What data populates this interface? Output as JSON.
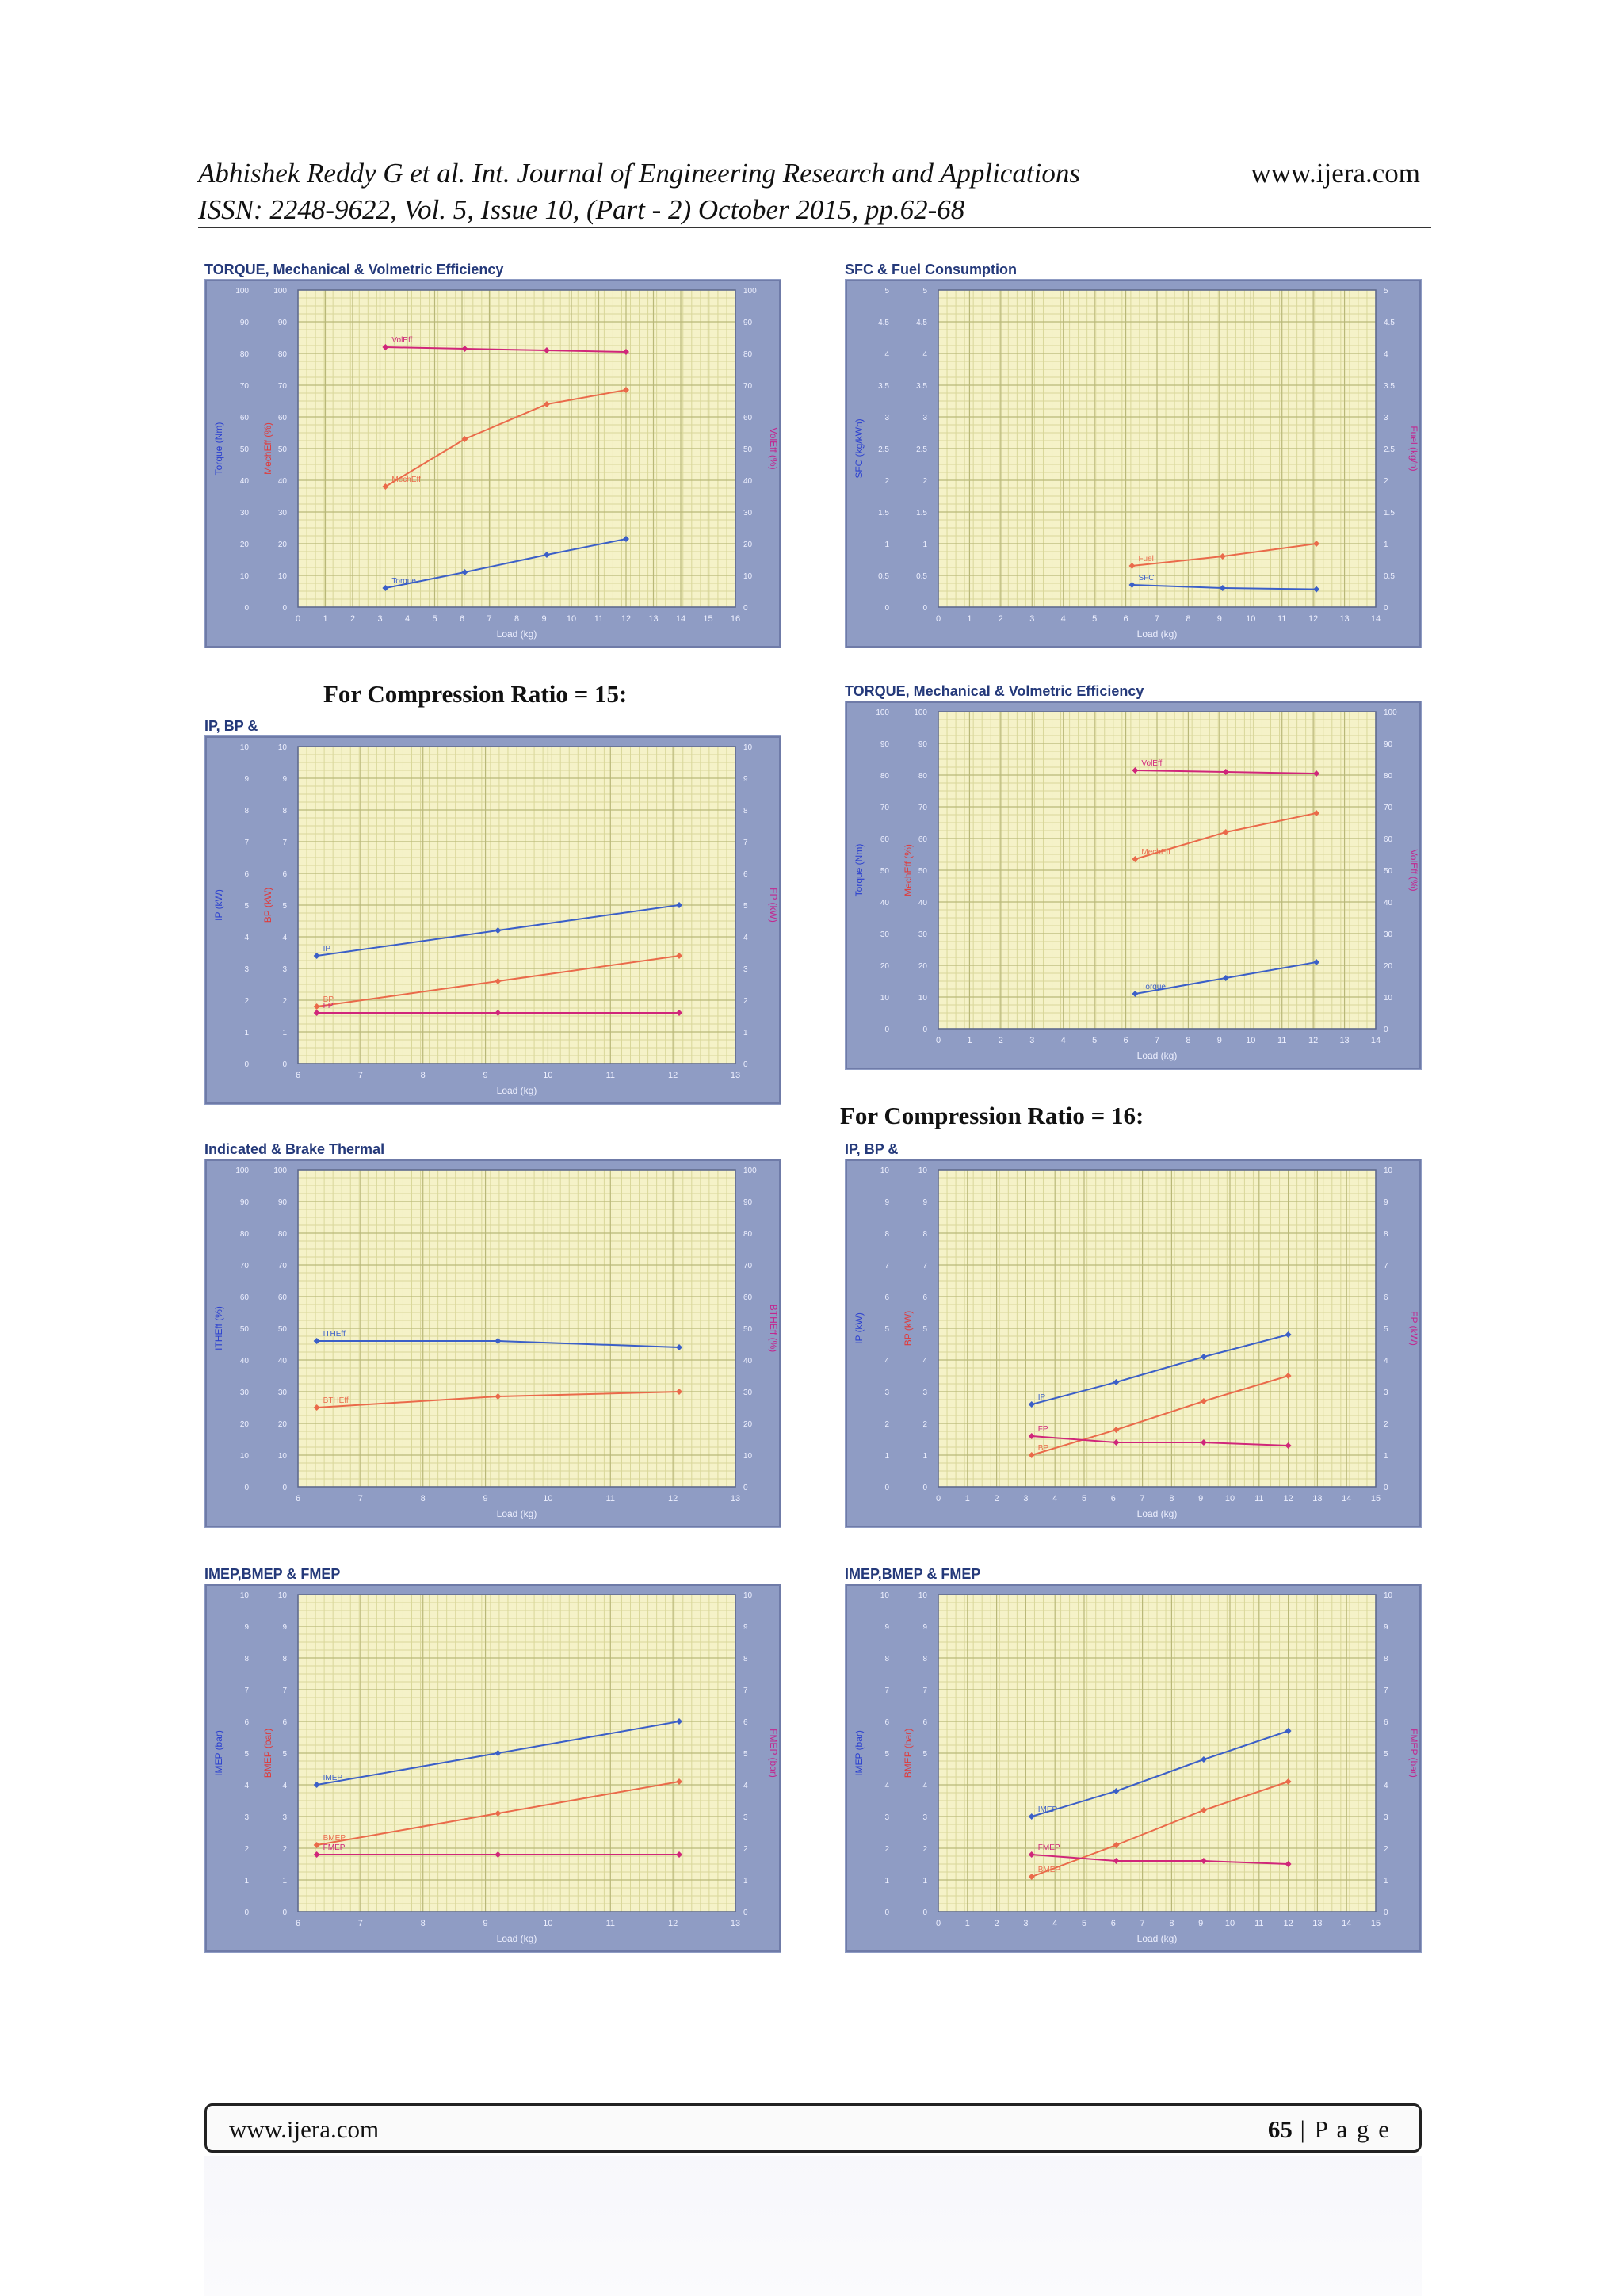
{
  "header": {
    "line1": "Abhishek Reddy G et al. Int. Journal of Engineering Research and Applications",
    "line2": "ISSN: 2248-9622, Vol. 5, Issue 10, (Part - 2) October 2015, pp.62-68",
    "site": "www.ijera.com"
  },
  "labels": {
    "cr15": "For Compression Ratio = 15:",
    "cr16": "For Compression Ratio = 16:"
  },
  "footer": {
    "site": "www.ijera.com",
    "page_number": "65",
    "page_word": " | P a g e"
  },
  "colors": {
    "panel_frame": "#8f9cc4",
    "plot_bg": "#f5f2c8",
    "grid_fine": "#d9d79a",
    "grid_major": "#b9b878",
    "axis_left": "#2a3fd0",
    "axis_mid": "#e03a3a",
    "axis_right": "#c2268f",
    "series_blue": "#3b5fc8",
    "series_orange": "#ea6a4a",
    "series_magenta": "#d0267a"
  },
  "chart_data": [
    {
      "type": "line",
      "title": "TORQUE, Mechanical & Volmetric Efficiency",
      "xlabel": "Load (kg)",
      "xlim": [
        0,
        16
      ],
      "xticks": [
        0,
        1,
        2,
        3,
        4,
        5,
        6,
        7,
        8,
        9,
        10,
        11,
        12,
        13,
        14,
        15,
        16
      ],
      "ylim": [
        0,
        100
      ],
      "ylim_right": [
        0,
        100
      ],
      "yticks": [
        0,
        10,
        20,
        30,
        40,
        50,
        60,
        70,
        80,
        90,
        100
      ],
      "ylabel_left": "Torque (Nm)",
      "ylabel_mid": "MechEff (%)",
      "ylabel_right": "VolEff (%)",
      "series": [
        {
          "name": "VolEff",
          "color": "series_magenta",
          "x": [
            3.2,
            6.1,
            9.1,
            12.0
          ],
          "y": [
            82,
            81.5,
            81,
            80.5
          ]
        },
        {
          "name": "MechEff",
          "color": "series_orange",
          "x": [
            3.2,
            6.1,
            9.1,
            12.0
          ],
          "y": [
            38,
            53,
            64,
            68.5
          ]
        },
        {
          "name": "Torque",
          "color": "series_blue",
          "x": [
            3.2,
            6.1,
            9.1,
            12.0
          ],
          "y": [
            6,
            11,
            16.5,
            21.5
          ]
        }
      ]
    },
    {
      "type": "line",
      "title": "SFC & Fuel Consumption",
      "xlabel": "Load (kg)",
      "xlim": [
        0,
        14
      ],
      "xticks": [
        0,
        1,
        2,
        3,
        4,
        5,
        6,
        7,
        8,
        9,
        10,
        11,
        12,
        13,
        14
      ],
      "ylim": [
        0,
        5
      ],
      "ylim_right": [
        0,
        5
      ],
      "yticks": [
        0,
        0.5,
        1,
        1.5,
        2,
        2.5,
        3,
        3.5,
        4,
        4.5,
        5
      ],
      "ylabel_left": "SFC (kg/kWh)",
      "ylabel_mid": "",
      "ylabel_right": "Fuel (kg/h)",
      "series": [
        {
          "name": "Fuel",
          "color": "series_orange",
          "x": [
            6.2,
            9.1,
            12.1
          ],
          "y": [
            0.65,
            0.8,
            1.0
          ]
        },
        {
          "name": "SFC",
          "color": "series_blue",
          "x": [
            6.2,
            9.1,
            12.1
          ],
          "y": [
            0.35,
            0.3,
            0.28
          ]
        }
      ]
    },
    {
      "type": "line",
      "title": "IP, BP &",
      "xlabel": "Load (kg)",
      "xlim": [
        6,
        13
      ],
      "xticks": [
        6,
        7,
        8,
        9,
        10,
        11,
        12,
        13
      ],
      "ylim": [
        0,
        10
      ],
      "ylim_right": [
        0,
        10
      ],
      "yticks": [
        0,
        1,
        2,
        3,
        4,
        5,
        6,
        7,
        8,
        9,
        10
      ],
      "ylabel_left": "IP (kW)",
      "ylabel_mid": "BP (kW)",
      "ylabel_right": "FP (kW)",
      "series": [
        {
          "name": "IP",
          "color": "series_blue",
          "x": [
            6.3,
            9.2,
            12.1
          ],
          "y": [
            3.4,
            4.2,
            5.0
          ]
        },
        {
          "name": "BP",
          "color": "series_orange",
          "x": [
            6.3,
            9.2,
            12.1
          ],
          "y": [
            1.8,
            2.6,
            3.4
          ]
        },
        {
          "name": "FP",
          "color": "series_magenta",
          "x": [
            6.3,
            9.2,
            12.1
          ],
          "y": [
            1.6,
            1.6,
            1.6
          ]
        }
      ]
    },
    {
      "type": "line",
      "title": "TORQUE, Mechanical & Volmetric Efficiency",
      "xlabel": "Load (kg)",
      "xlim": [
        0,
        14
      ],
      "xticks": [
        0,
        1,
        2,
        3,
        4,
        5,
        6,
        7,
        8,
        9,
        10,
        11,
        12,
        13,
        14
      ],
      "ylim": [
        0,
        100
      ],
      "ylim_right": [
        0,
        100
      ],
      "yticks": [
        0,
        10,
        20,
        30,
        40,
        50,
        60,
        70,
        80,
        90,
        100
      ],
      "ylabel_left": "Torque (Nm)",
      "ylabel_mid": "MechEff (%)",
      "ylabel_right": "VolEff (%)",
      "series": [
        {
          "name": "VolEff",
          "color": "series_magenta",
          "x": [
            6.3,
            9.2,
            12.1
          ],
          "y": [
            81.5,
            81,
            80.5
          ]
        },
        {
          "name": "MechEff",
          "color": "series_orange",
          "x": [
            6.3,
            9.2,
            12.1
          ],
          "y": [
            53.5,
            62,
            68
          ]
        },
        {
          "name": "Torque",
          "color": "series_blue",
          "x": [
            6.3,
            9.2,
            12.1
          ],
          "y": [
            11,
            16,
            21
          ]
        }
      ]
    },
    {
      "type": "line",
      "title": "Indicated & Brake Thermal",
      "xlabel": "Load (kg)",
      "xlim": [
        6,
        13
      ],
      "xticks": [
        6,
        7,
        8,
        9,
        10,
        11,
        12,
        13
      ],
      "ylim": [
        0,
        100
      ],
      "ylim_right": [
        0,
        100
      ],
      "yticks": [
        0,
        10,
        20,
        30,
        40,
        50,
        60,
        70,
        80,
        90,
        100
      ],
      "ylabel_left": "ITHEff (%)",
      "ylabel_mid": "",
      "ylabel_right": "BTHEff (%)",
      "series": [
        {
          "name": "ITHEff",
          "color": "series_blue",
          "x": [
            6.3,
            9.2,
            12.1
          ],
          "y": [
            46,
            46,
            44
          ]
        },
        {
          "name": "BTHEff",
          "color": "series_orange",
          "x": [
            6.3,
            9.2,
            12.1
          ],
          "y": [
            25,
            28.5,
            30
          ]
        }
      ]
    },
    {
      "type": "line",
      "title": "IP, BP &",
      "xlabel": "Load (kg)",
      "xlim": [
        0,
        15
      ],
      "xticks": [
        0,
        1,
        2,
        3,
        4,
        5,
        6,
        7,
        8,
        9,
        10,
        11,
        12,
        13,
        14,
        15
      ],
      "ylim": [
        0,
        10
      ],
      "ylim_right": [
        0,
        10
      ],
      "yticks": [
        0,
        1,
        2,
        3,
        4,
        5,
        6,
        7,
        8,
        9,
        10
      ],
      "ylabel_left": "IP (kW)",
      "ylabel_mid": "BP (kW)",
      "ylabel_right": "FP (kW)",
      "series": [
        {
          "name": "IP",
          "color": "series_blue",
          "x": [
            3.2,
            6.1,
            9.1,
            12.0
          ],
          "y": [
            2.6,
            3.3,
            4.1,
            4.8
          ]
        },
        {
          "name": "BP",
          "color": "series_orange",
          "x": [
            3.2,
            6.1,
            9.1,
            12.0
          ],
          "y": [
            1.0,
            1.8,
            2.7,
            3.5
          ]
        },
        {
          "name": "FP",
          "color": "series_magenta",
          "x": [
            3.2,
            6.1,
            9.1,
            12.0
          ],
          "y": [
            1.6,
            1.4,
            1.4,
            1.3
          ]
        }
      ]
    },
    {
      "type": "line",
      "title": "IMEP,BMEP & FMEP",
      "xlabel": "Load (kg)",
      "xlim": [
        6,
        13
      ],
      "xticks": [
        6,
        7,
        8,
        9,
        10,
        11,
        12,
        13
      ],
      "ylim": [
        0,
        10
      ],
      "ylim_right": [
        0,
        10
      ],
      "yticks": [
        0,
        1,
        2,
        3,
        4,
        5,
        6,
        7,
        8,
        9,
        10
      ],
      "ylabel_left": "IMEP (bar)",
      "ylabel_mid": "BMEP (bar)",
      "ylabel_right": "FMEP (bar)",
      "series": [
        {
          "name": "IMEP",
          "color": "series_blue",
          "x": [
            6.3,
            9.2,
            12.1
          ],
          "y": [
            4.0,
            5.0,
            6.0
          ]
        },
        {
          "name": "BMEP",
          "color": "series_orange",
          "x": [
            6.3,
            9.2,
            12.1
          ],
          "y": [
            2.1,
            3.1,
            4.1
          ]
        },
        {
          "name": "FMEP",
          "color": "series_magenta",
          "x": [
            6.3,
            9.2,
            12.1
          ],
          "y": [
            1.8,
            1.8,
            1.8
          ]
        }
      ]
    },
    {
      "type": "line",
      "title": "IMEP,BMEP & FMEP",
      "xlabel": "Load (kg)",
      "xlim": [
        0,
        15
      ],
      "xticks": [
        0,
        1,
        2,
        3,
        4,
        5,
        6,
        7,
        8,
        9,
        10,
        11,
        12,
        13,
        14,
        15
      ],
      "ylim": [
        0,
        10
      ],
      "ylim_right": [
        0,
        10
      ],
      "yticks": [
        0,
        1,
        2,
        3,
        4,
        5,
        6,
        7,
        8,
        9,
        10
      ],
      "ylabel_left": "IMEP (bar)",
      "ylabel_mid": "BMEP (bar)",
      "ylabel_right": "FMEP (bar)",
      "series": [
        {
          "name": "IMEP",
          "color": "series_blue",
          "x": [
            3.2,
            6.1,
            9.1,
            12.0
          ],
          "y": [
            3.0,
            3.8,
            4.8,
            5.7
          ]
        },
        {
          "name": "BMEP",
          "color": "series_orange",
          "x": [
            3.2,
            6.1,
            9.1,
            12.0
          ],
          "y": [
            1.1,
            2.1,
            3.2,
            4.1
          ]
        },
        {
          "name": "FMEP",
          "color": "series_magenta",
          "x": [
            3.2,
            6.1,
            9.1,
            12.0
          ],
          "y": [
            1.8,
            1.6,
            1.6,
            1.5
          ]
        }
      ]
    }
  ]
}
